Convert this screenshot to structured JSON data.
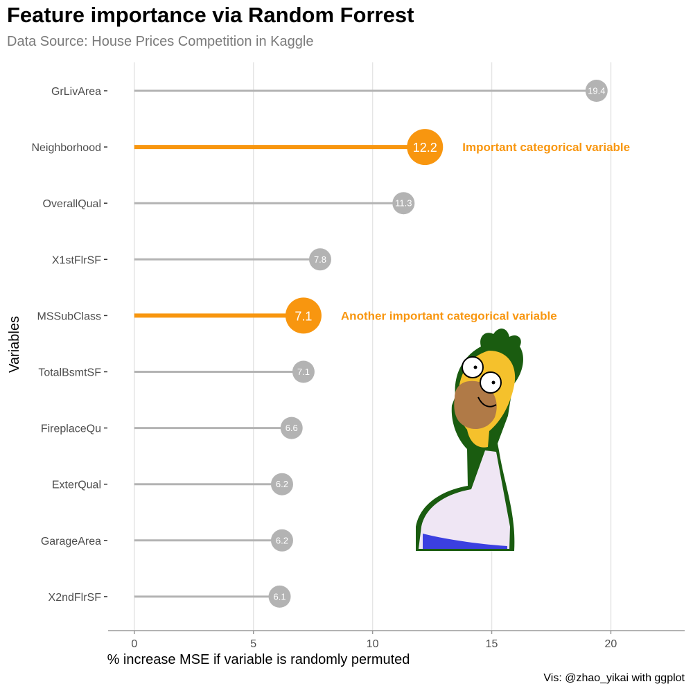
{
  "chart_data": {
    "type": "lollipop",
    "title": "Feature importance via Random Forrest",
    "subtitle": "Data Source: House Prices Competition in Kaggle",
    "xlabel": "% increase MSE if variable is randomly permuted",
    "ylabel": "Variables",
    "caption": "Vis: @zhao_yikai with ggplot",
    "xlim": [
      -1.1,
      23.1
    ],
    "x_ticks": [
      0,
      5,
      10,
      15,
      20
    ],
    "grid": true,
    "categories": [
      "GrLivArea",
      "Neighborhood",
      "OverallQual",
      "X1stFlrSF",
      "MSSubClass",
      "TotalBsmtSF",
      "FireplaceQu",
      "ExterQual",
      "GarageArea",
      "X2ndFlrSF"
    ],
    "values": [
      19.4,
      12.2,
      11.3,
      7.8,
      7.1,
      7.1,
      6.6,
      6.2,
      6.2,
      6.1
    ],
    "value_labels": [
      "19.4",
      "12.2",
      "11.3",
      "7.8",
      "7.1",
      "7.1",
      "6.6",
      "6.2",
      "6.2",
      "6.1"
    ],
    "highlighted": [
      false,
      true,
      false,
      false,
      true,
      false,
      false,
      false,
      false,
      false
    ],
    "annotations": [
      {
        "category": "Neighborhood",
        "text": "Important categorical variable"
      },
      {
        "category": "MSSubClass",
        "text": "Another important categorical variable"
      }
    ],
    "colors": {
      "default": "#b3b3b3",
      "highlight": "#f8960f",
      "grid": "#e5e5e5",
      "axis": "#9a9a9a",
      "tick_text": "#4d4d4d"
    }
  },
  "decoration": {
    "image_icon": "homer-simpson-backing-into-hedge"
  }
}
